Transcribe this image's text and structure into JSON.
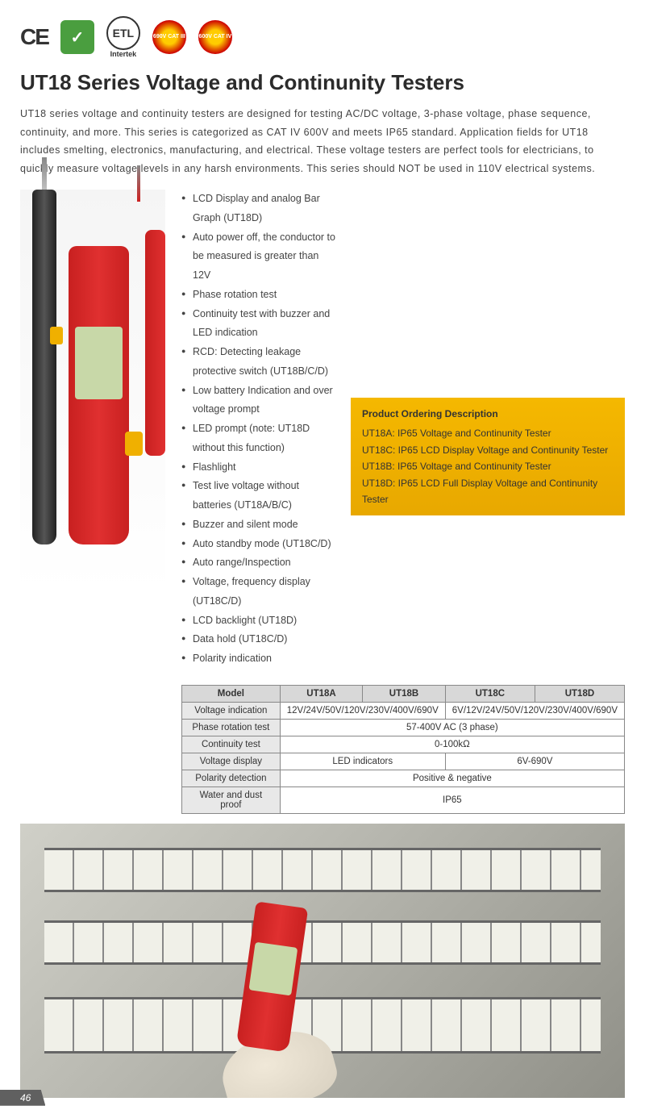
{
  "certifications": {
    "ce": "CE",
    "rohs": "RoHS",
    "etl": "ETL",
    "intertek": "Intertek",
    "cat3": "690V CAT III",
    "cat4": "600V CAT IV"
  },
  "title": "UT18 Series Voltage and Continunity Testers",
  "intro": "UT18 series voltage and continuity testers are designed for testing AC/DC voltage, 3-phase voltage, phase sequence, continuity, and more. This series is categorized as CAT IV 600V and meets IP65 standard. Application fields for UT18 includes smelting, electronics, manufacturing, and electrical. These voltage testers are perfect tools for electricians, to quickly measure voltage levels in any harsh environments. This series should NOT be used in 110V electrical systems.",
  "features": [
    "LCD Display and analog Bar Graph (UT18D)",
    "Auto power off, the conductor to be measured is greater than 12V",
    "Phase rotation test",
    "Continuity test with buzzer and LED indication",
    "RCD: Detecting leakage protective switch (UT18B/C/D)",
    "Low battery Indication and over voltage prompt",
    "LED prompt (note: UT18D without this function)",
    "Flashlight",
    "Test live voltage without batteries (UT18A/B/C)",
    "Buzzer and silent mode",
    "Auto standby mode (UT18C/D)",
    "Auto range/Inspection",
    "Voltage, frequency display (UT18C/D)",
    "LCD backlight (UT18D)",
    "Data hold (UT18C/D)",
    "Polarity indication"
  ],
  "ordering": {
    "title": "Product Ordering Description",
    "items": [
      "UT18A: IP65 Voltage and Continunity Tester",
      "UT18C: IP65 LCD Display Voltage and Continunity Tester",
      "UT18B: IP65 Voltage and Continunity Tester",
      "UT18D: IP65 LCD Full Display Voltage and Continunity Tester"
    ]
  },
  "table": {
    "headers": [
      "Model",
      "UT18A",
      "UT18B",
      "UT18C",
      "UT18D"
    ],
    "rows": [
      {
        "label": "Voltage indication",
        "cells": [
          {
            "span": 2,
            "text": "12V/24V/50V/120V/230V/400V/690V"
          },
          {
            "span": 2,
            "text": "6V/12V/24V/50V/120V/230V/400V/690V"
          }
        ]
      },
      {
        "label": "Phase rotation test",
        "cells": [
          {
            "span": 4,
            "text": "57-400V AC (3 phase)"
          }
        ]
      },
      {
        "label": "Continuity test",
        "cells": [
          {
            "span": 4,
            "text": "0-100kΩ"
          }
        ]
      },
      {
        "label": "Voltage display",
        "cells": [
          {
            "span": 2,
            "text": "LED indicators"
          },
          {
            "span": 2,
            "text": "6V-690V"
          }
        ]
      },
      {
        "label": "Polarity detection",
        "cells": [
          {
            "span": 4,
            "text": "Positive & negative"
          }
        ]
      },
      {
        "label": "Water and dust proof",
        "cells": [
          {
            "span": 4,
            "text": "IP65"
          }
        ]
      }
    ]
  },
  "pageNumber": "46"
}
